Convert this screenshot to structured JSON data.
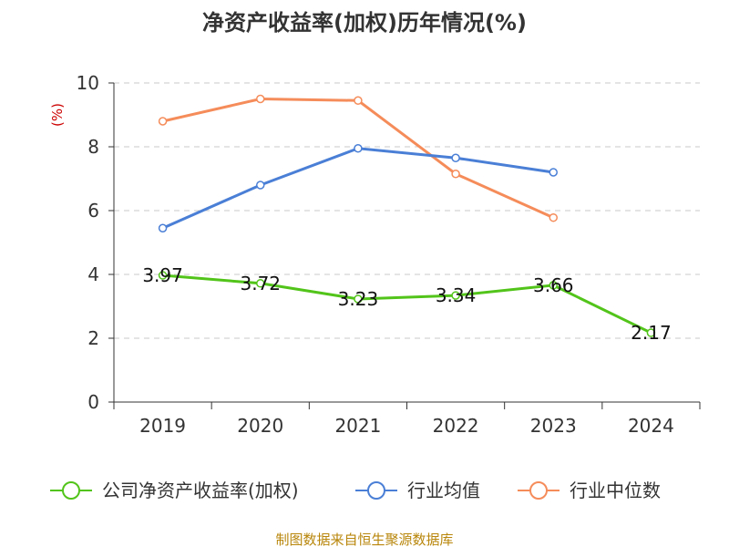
{
  "chart_data": {
    "type": "line",
    "title": "净资产收益率(加权)历年情况(%)",
    "ylabel": "(%)",
    "xlabel": "",
    "ylim": [
      0,
      10
    ],
    "yticks": [
      0,
      2,
      4,
      6,
      8,
      10
    ],
    "categories": [
      "2019",
      "2020",
      "2021",
      "2022",
      "2023",
      "2024"
    ],
    "grid": true,
    "legend_position": "bottom",
    "series": [
      {
        "name": "公司净资产收益率(加权)",
        "color": "#52c41a",
        "values": [
          3.97,
          3.72,
          3.23,
          3.34,
          3.66,
          2.17
        ],
        "labels": [
          "3.97",
          "3.72",
          "3.23",
          "3.34",
          "3.66",
          "2.17"
        ]
      },
      {
        "name": "行业均值",
        "color": "#4a7fd6",
        "values": [
          5.45,
          6.8,
          7.95,
          7.65,
          7.2,
          null
        ]
      },
      {
        "name": "行业中位数",
        "color": "#f58c5a",
        "values": [
          8.8,
          9.5,
          9.45,
          7.15,
          5.78,
          null
        ]
      }
    ],
    "source": "制图数据来自恒生聚源数据库"
  }
}
